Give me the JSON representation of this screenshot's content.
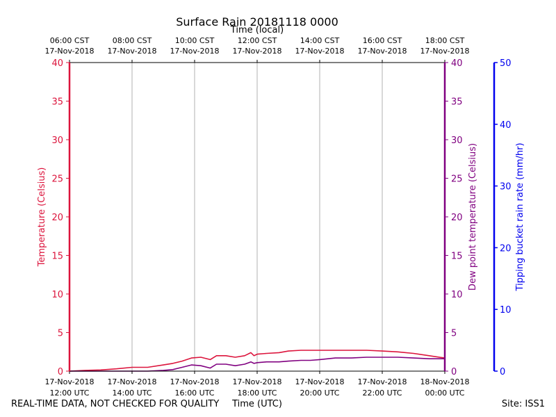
{
  "chart_data": {
    "type": "line",
    "title": "Surface Rain 20181118 0000",
    "top_axis_label": "Time (local)",
    "xlabel": "Time (UTC)",
    "x_hours_utc": [
      12,
      24
    ],
    "ticks_local": [
      {
        "time": "06:00 CST",
        "date": "17-Nov-2018"
      },
      {
        "time": "08:00 CST",
        "date": "17-Nov-2018"
      },
      {
        "time": "10:00 CST",
        "date": "17-Nov-2018"
      },
      {
        "time": "12:00 CST",
        "date": "17-Nov-2018"
      },
      {
        "time": "14:00 CST",
        "date": "17-Nov-2018"
      },
      {
        "time": "16:00 CST",
        "date": "17-Nov-2018"
      },
      {
        "time": "18:00 CST",
        "date": "17-Nov-2018"
      }
    ],
    "ticks_utc": [
      {
        "date": "17-Nov-2018",
        "time": "12:00 UTC"
      },
      {
        "date": "17-Nov-2018",
        "time": "14:00 UTC"
      },
      {
        "date": "17-Nov-2018",
        "time": "16:00 UTC"
      },
      {
        "date": "17-Nov-2018",
        "time": "18:00 UTC"
      },
      {
        "date": "17-Nov-2018",
        "time": "20:00 UTC"
      },
      {
        "date": "17-Nov-2018",
        "time": "22:00 UTC"
      },
      {
        "date": "18-Nov-2018",
        "time": "00:00 UTC"
      }
    ],
    "y_left": {
      "label": "Temperature (Celsius)",
      "range": [
        0,
        40
      ],
      "ticks": [
        "0",
        "5",
        "10",
        "15",
        "20",
        "25",
        "30",
        "35",
        "40"
      ],
      "color": "#dc143c"
    },
    "y_right": {
      "label": "Dew point temperature (Celsius)",
      "range": [
        0,
        40
      ],
      "ticks": [
        "0",
        "5",
        "10",
        "15",
        "20",
        "25",
        "30",
        "35",
        "40"
      ],
      "color": "#800080"
    },
    "y_rain": {
      "label": "Tipping bucket rain rate (mm/hr)",
      "range": [
        0,
        50
      ],
      "ticks": [
        "0",
        "10",
        "20",
        "30",
        "40",
        "50"
      ],
      "color": "#0000ee"
    },
    "series": [
      {
        "name": "Temperature",
        "color": "#dc143c",
        "x": [
          12.0,
          12.5,
          13.0,
          13.5,
          14.0,
          14.5,
          15.0,
          15.3,
          15.6,
          15.9,
          16.2,
          16.5,
          16.7,
          17.0,
          17.3,
          17.6,
          17.8,
          17.9,
          18.0,
          18.3,
          18.7,
          19.0,
          19.4,
          19.7,
          20.0,
          20.5,
          21.0,
          21.5,
          22.0,
          22.5,
          23.0,
          23.5,
          24.0
        ],
        "values": [
          0.0,
          0.1,
          0.15,
          0.3,
          0.5,
          0.5,
          0.8,
          1.0,
          1.3,
          1.7,
          1.8,
          1.5,
          2.0,
          2.0,
          1.8,
          2.0,
          2.4,
          2.0,
          2.2,
          2.3,
          2.4,
          2.6,
          2.7,
          2.7,
          2.7,
          2.7,
          2.7,
          2.7,
          2.6,
          2.5,
          2.3,
          2.0,
          1.7
        ]
      },
      {
        "name": "Dew point",
        "color": "#800080",
        "x": [
          12.0,
          12.5,
          13.0,
          13.5,
          14.0,
          14.5,
          15.0,
          15.3,
          15.6,
          15.9,
          16.2,
          16.5,
          16.7,
          17.0,
          17.3,
          17.6,
          17.8,
          17.9,
          18.0,
          18.3,
          18.7,
          19.0,
          19.4,
          19.7,
          20.0,
          20.5,
          21.0,
          21.5,
          22.0,
          22.5,
          23.0,
          23.5,
          24.0
        ],
        "values": [
          0.0,
          0.0,
          0.0,
          0.0,
          0.0,
          0.0,
          0.1,
          0.2,
          0.5,
          0.8,
          0.7,
          0.4,
          0.9,
          0.9,
          0.7,
          0.9,
          1.2,
          1.0,
          1.1,
          1.2,
          1.2,
          1.3,
          1.4,
          1.4,
          1.5,
          1.7,
          1.7,
          1.8,
          1.8,
          1.8,
          1.7,
          1.6,
          1.6
        ]
      }
    ],
    "grid": true
  },
  "footer": {
    "left": "REAL-TIME DATA, NOT CHECKED FOR QUALITY",
    "right": "Site: ISS1"
  }
}
